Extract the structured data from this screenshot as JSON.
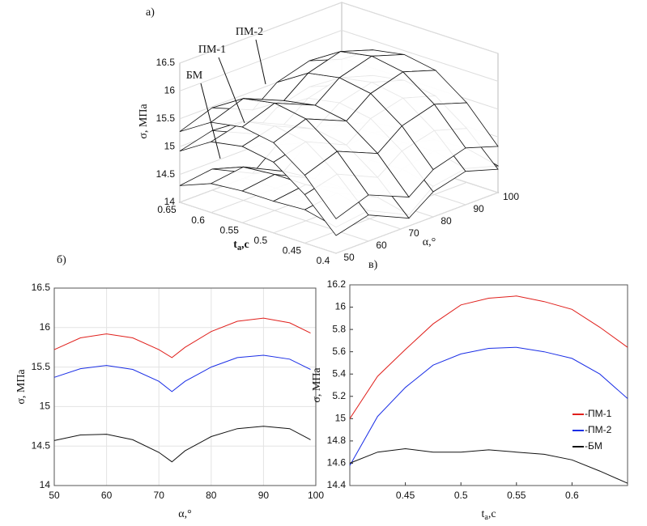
{
  "chart_data": [
    {
      "type": "surface3d",
      "panel_label": "а)",
      "xlabel": {
        "base": "t",
        "sub": "а",
        "unit": ",с"
      },
      "ylabel": "α,°",
      "zlabel": "σ, МПа",
      "x": [
        0.4,
        0.45,
        0.5,
        0.55,
        0.6,
        0.65
      ],
      "y": [
        50,
        60,
        72.5,
        80,
        90,
        100
      ],
      "xlim": [
        0.4,
        0.65
      ],
      "xticks": [
        0.4,
        0.45,
        0.5,
        0.55,
        0.6,
        0.65
      ],
      "ylim": [
        50,
        100
      ],
      "yticks": [
        50,
        60,
        70,
        80,
        90,
        100
      ],
      "zlim": [
        14,
        16.5
      ],
      "zticks": [
        14,
        14.5,
        15,
        15.5,
        16,
        16.5
      ],
      "series": [
        {
          "name": "БМ",
          "color": "#111111",
          "values": [
            [
              14.47,
              14.55,
              14.2,
              14.55,
              14.65,
              14.48
            ],
            [
              14.6,
              14.68,
              14.33,
              14.68,
              14.78,
              14.61
            ],
            [
              14.57,
              14.65,
              14.3,
              14.65,
              14.75,
              14.58
            ],
            [
              14.57,
              14.65,
              14.3,
              14.65,
              14.75,
              14.58
            ],
            [
              14.52,
              14.6,
              14.25,
              14.6,
              14.7,
              14.53
            ],
            [
              14.3,
              14.38,
              14.03,
              14.38,
              14.48,
              14.31
            ]
          ]
        },
        {
          "name": "ПМ-1",
          "color": "#111111",
          "values": [
            [
              14.32,
              14.47,
              14.14,
              14.45,
              14.6,
              14.42
            ],
            [
              14.87,
              15.02,
              14.69,
              15.0,
              15.15,
              14.97
            ],
            [
              15.27,
              15.42,
              15.09,
              15.4,
              15.55,
              15.37
            ],
            [
              15.37,
              15.52,
              15.19,
              15.5,
              15.65,
              15.47
            ],
            [
              15.27,
              15.42,
              15.09,
              15.4,
              15.55,
              15.37
            ],
            [
              14.92,
              15.07,
              14.74,
              15.05,
              15.2,
              15.02
            ]
          ]
        },
        {
          "name": "ПМ-2",
          "color": "#111111",
          "values": [
            [
              14.62,
              14.83,
              14.52,
              14.85,
              15.02,
              14.83
            ],
            [
              15.22,
              15.43,
              15.12,
              15.45,
              15.62,
              15.43
            ],
            [
              15.62,
              15.83,
              15.52,
              15.85,
              16.02,
              15.83
            ],
            [
              15.72,
              15.93,
              15.62,
              15.95,
              16.12,
              15.93
            ],
            [
              15.62,
              15.83,
              15.52,
              15.85,
              16.02,
              15.83
            ],
            [
              15.27,
              15.48,
              15.17,
              15.5,
              15.67,
              15.48
            ]
          ]
        }
      ]
    },
    {
      "type": "line",
      "panel_label": "б)",
      "xlabel": "α,°",
      "ylabel": "σ, МПа",
      "x": [
        50,
        55,
        60,
        65,
        70,
        72.5,
        75,
        80,
        85,
        90,
        95,
        99
      ],
      "xlim": [
        50,
        100
      ],
      "xticks": [
        50,
        60,
        70,
        80,
        90,
        100
      ],
      "ylim": [
        14,
        16.5
      ],
      "yticks": [
        14,
        14.5,
        15,
        15.5,
        16,
        16.5
      ],
      "grid": true,
      "series": [
        {
          "color": "#e0201c",
          "values": [
            15.72,
            15.87,
            15.92,
            15.87,
            15.72,
            15.62,
            15.75,
            15.95,
            16.08,
            16.12,
            16.06,
            15.93
          ]
        },
        {
          "color": "#1a2ee6",
          "values": [
            15.37,
            15.48,
            15.52,
            15.47,
            15.32,
            15.19,
            15.32,
            15.5,
            15.62,
            15.65,
            15.6,
            15.47
          ]
        },
        {
          "color": "#111111",
          "values": [
            14.57,
            14.64,
            14.65,
            14.58,
            14.42,
            14.3,
            14.44,
            14.62,
            14.72,
            14.75,
            14.72,
            14.58
          ]
        }
      ]
    },
    {
      "type": "line",
      "panel_label": "в)",
      "xlabel": {
        "base": "t",
        "sub": "а",
        "unit": ",с"
      },
      "ylabel": "σ, МПа",
      "x": [
        0.4,
        0.425,
        0.45,
        0.475,
        0.5,
        0.525,
        0.55,
        0.575,
        0.6,
        0.625,
        0.65
      ],
      "xlim": [
        0.4,
        0.65
      ],
      "xticks": [
        0.45,
        0.5,
        0.55,
        0.6
      ],
      "ylim": [
        14.4,
        16.2
      ],
      "yticks": [
        14.4,
        14.6,
        14.8,
        15,
        {
          "value": 15.2,
          "label": "5.2"
        },
        {
          "value": 15.4,
          "label": "5.4"
        },
        {
          "value": 15.6,
          "label": "5.6"
        },
        {
          "value": 15.8,
          "label": "5.8"
        },
        16,
        16.2
      ],
      "grid": false,
      "legend": "right",
      "series": [
        {
          "name": "-ПМ-1",
          "color": "#e0201c",
          "values": [
            15.0,
            15.38,
            15.62,
            15.85,
            16.02,
            16.08,
            16.1,
            16.05,
            15.98,
            15.82,
            15.64
          ]
        },
        {
          "name": "-ПМ-2",
          "color": "#1a2ee6",
          "values": [
            14.58,
            15.02,
            15.28,
            15.48,
            15.58,
            15.63,
            15.64,
            15.6,
            15.54,
            15.4,
            15.18
          ]
        },
        {
          "name": "-БМ",
          "color": "#111111",
          "values": [
            14.6,
            14.7,
            14.73,
            14.7,
            14.7,
            14.72,
            14.7,
            14.68,
            14.63,
            14.53,
            14.42
          ]
        }
      ]
    }
  ]
}
